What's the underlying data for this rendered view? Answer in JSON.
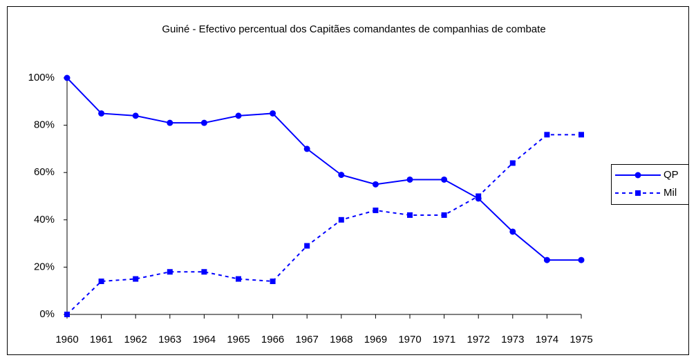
{
  "chart_data": {
    "type": "line",
    "title": "Guiné - Efectivo percentual dos Capitães comandantes de companhias de combate",
    "categories": [
      "1960",
      "1961",
      "1962",
      "1963",
      "1964",
      "1965",
      "1966",
      "1967",
      "1968",
      "1969",
      "1970",
      "1971",
      "1972",
      "1973",
      "1974",
      "1975"
    ],
    "series": [
      {
        "name": "QP",
        "color": "#0000ff",
        "marker": "circle",
        "dash": false,
        "values": [
          100,
          85,
          84,
          81,
          81,
          84,
          85,
          70,
          59,
          55,
          57,
          57,
          49,
          35,
          23,
          23
        ]
      },
      {
        "name": "Mil",
        "color": "#0000ff",
        "marker": "square",
        "dash": true,
        "values": [
          0,
          14,
          15,
          18,
          18,
          15,
          14,
          29,
          40,
          44,
          42,
          42,
          50,
          64,
          76,
          76
        ]
      }
    ],
    "ylim": [
      0,
      100
    ],
    "yticks": [
      {
        "value": 0,
        "label": "0%"
      },
      {
        "value": 20,
        "label": "20%"
      },
      {
        "value": 40,
        "label": "40%"
      },
      {
        "value": 60,
        "label": "60%"
      },
      {
        "value": 80,
        "label": "80%"
      },
      {
        "value": 100,
        "label": "100%"
      }
    ],
    "grid": false,
    "legend": "right"
  }
}
